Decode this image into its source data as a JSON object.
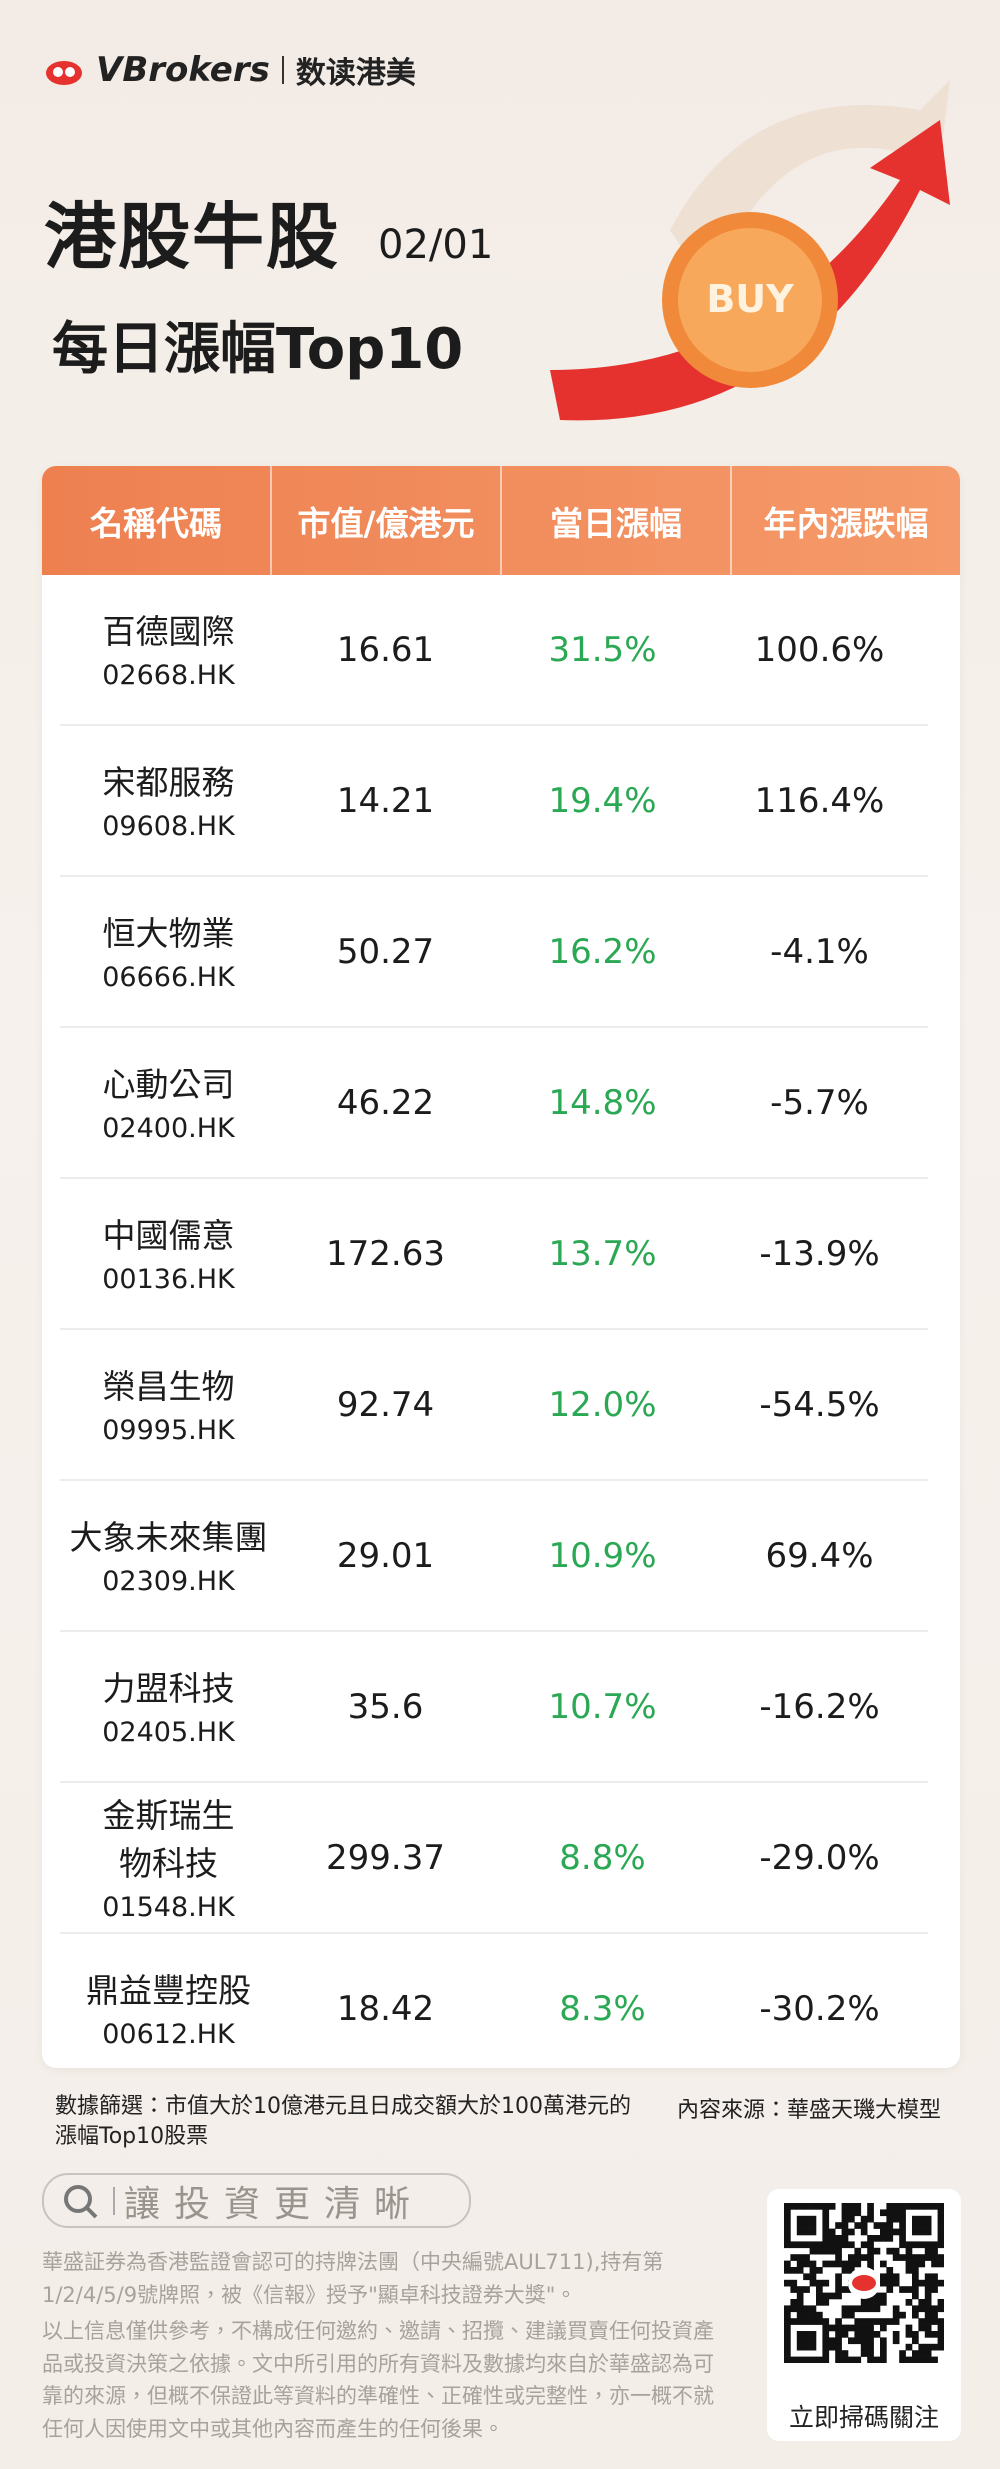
{
  "header": {
    "brand": "VBrokers",
    "brand_sub": "数读港美",
    "title": "港股牛股",
    "date": "02/01",
    "subtitle": "每日漲幅Top10",
    "coin_label": "BUY"
  },
  "table": {
    "headers": [
      "名稱代碼",
      "市值/億港元",
      "當日漲幅",
      "年內漲跌幅"
    ],
    "rows": [
      [
        "百德國際",
        "02668.HK",
        "16.61",
        "31.5%",
        "100.6%"
      ],
      [
        "宋都服務",
        "09608.HK",
        "14.21",
        "19.4%",
        "116.4%"
      ],
      [
        "恒大物業",
        "06666.HK",
        "50.27",
        "16.2%",
        "-4.1%"
      ],
      [
        "心動公司",
        "02400.HK",
        "46.22",
        "14.8%",
        "-5.7%"
      ],
      [
        "中國儒意",
        "00136.HK",
        "172.63",
        "13.7%",
        "-13.9%"
      ],
      [
        "榮昌生物",
        "09995.HK",
        "92.74",
        "12.0%",
        "-54.5%"
      ],
      [
        "大象未來集團",
        "02309.HK",
        "29.01",
        "10.9%",
        "69.4%"
      ],
      [
        "力盟科技",
        "02405.HK",
        "35.6",
        "10.7%",
        "-16.2%"
      ],
      [
        "金斯瑞生物科技",
        "01548.HK",
        "299.37",
        "8.8%",
        "-29.0%"
      ],
      [
        "鼎益豐控股",
        "00612.HK",
        "18.42",
        "8.3%",
        "-30.2%"
      ]
    ]
  },
  "footer": {
    "filter_note": "數據篩選：市值大於10億港元且日成交額大於100萬港元的漲幅Top10股票",
    "source": "內容來源：華盛天璣大模型",
    "search": "讓投資更清晰",
    "disclaimer": [
      "華盛証券為香港監證會認可的持牌法團（中央編號AUL711),持有第1/2/4/5/9號牌照，被《信報》授予\"顯卓科技證券大獎\"。",
      "以上信息僅供參考，不構成任何邀約、邀請、招攬、建議買賣任何投資產品或投資決策之依據。文中所引用的所有資料及數據均來自於華盛認為可靠的來源，但概不保證此等資料的準確性、正確性或完整性，亦一概不就任何人因使用文中或其他內容而產生的任何後果。"
    ],
    "qr_label": "立即掃碼關注"
  }
}
